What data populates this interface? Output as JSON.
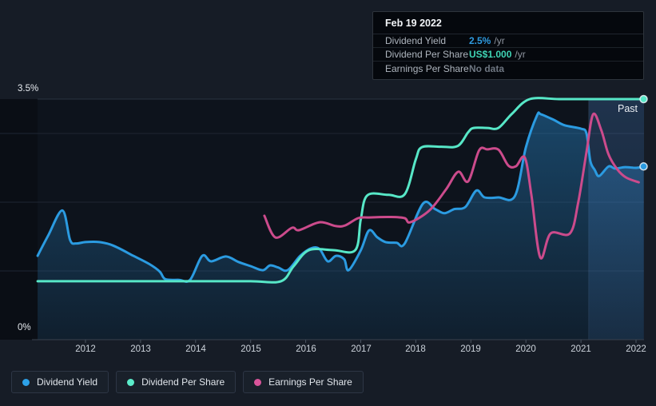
{
  "tooltip": {
    "date": "Feb 19 2022",
    "rows": [
      {
        "label": "Dividend Yield",
        "value": "2.5%",
        "suffix": "/yr",
        "value_color": "#2f9be0"
      },
      {
        "label": "Dividend Per Share",
        "value": "US$1.000",
        "suffix": "/yr",
        "value_color": "#3fd4b4"
      },
      {
        "label": "Earnings Per Share",
        "value": "No data",
        "suffix": "",
        "value_color": "#6e7681"
      }
    ]
  },
  "legend": {
    "items": [
      {
        "label": "Dividend Yield",
        "color": "#2da1e8"
      },
      {
        "label": "Dividend Per Share",
        "color": "#5becca"
      },
      {
        "label": "Earnings Per Share",
        "color": "#d9549a"
      }
    ]
  },
  "chart_data": {
    "type": "line",
    "past_label": "Past",
    "x_axis": {
      "ticks": [
        2012,
        2013,
        2014,
        2015,
        2016,
        2017,
        2018,
        2019,
        2020,
        2021,
        2022
      ],
      "range_years": [
        2011.13,
        2022.15
      ]
    },
    "y_axis": {
      "label_top": "3.5%",
      "label_bottom": "0%",
      "range_percent": [
        0,
        3.5
      ],
      "minor_gridlines_percent": [
        1,
        2,
        3
      ]
    },
    "highlight_band": {
      "x_start_year": 2021.14,
      "x_end_year": 2022.15
    },
    "series": [
      {
        "name": "Dividend Yield",
        "unit": "percent",
        "color": "#2b9be1",
        "area_fill": true,
        "end_dot": true,
        "points": [
          [
            2011.13,
            1.22
          ],
          [
            2011.32,
            1.51
          ],
          [
            2011.58,
            1.88
          ],
          [
            2011.72,
            1.45
          ],
          [
            2011.83,
            1.4
          ],
          [
            2012.0,
            1.42
          ],
          [
            2012.25,
            1.42
          ],
          [
            2012.5,
            1.37
          ],
          [
            2012.87,
            1.22
          ],
          [
            2013.16,
            1.1
          ],
          [
            2013.35,
            0.99
          ],
          [
            2013.45,
            0.88
          ],
          [
            2013.7,
            0.87
          ],
          [
            2013.9,
            0.87
          ],
          [
            2014.12,
            1.22
          ],
          [
            2014.28,
            1.14
          ],
          [
            2014.55,
            1.21
          ],
          [
            2014.78,
            1.13
          ],
          [
            2015.0,
            1.07
          ],
          [
            2015.22,
            1.01
          ],
          [
            2015.35,
            1.08
          ],
          [
            2015.5,
            1.05
          ],
          [
            2015.67,
            1.01
          ],
          [
            2015.9,
            1.22
          ],
          [
            2016.1,
            1.33
          ],
          [
            2016.25,
            1.32
          ],
          [
            2016.4,
            1.14
          ],
          [
            2016.55,
            1.22
          ],
          [
            2016.7,
            1.17
          ],
          [
            2016.78,
            1.01
          ],
          [
            2017.0,
            1.3
          ],
          [
            2017.15,
            1.59
          ],
          [
            2017.3,
            1.49
          ],
          [
            2017.45,
            1.42
          ],
          [
            2017.65,
            1.41
          ],
          [
            2017.8,
            1.4
          ],
          [
            2018.13,
            1.98
          ],
          [
            2018.35,
            1.9
          ],
          [
            2018.52,
            1.84
          ],
          [
            2018.7,
            1.9
          ],
          [
            2018.9,
            1.93
          ],
          [
            2019.1,
            2.17
          ],
          [
            2019.25,
            2.07
          ],
          [
            2019.5,
            2.07
          ],
          [
            2019.8,
            2.09
          ],
          [
            2020.0,
            2.8
          ],
          [
            2020.2,
            3.26
          ],
          [
            2020.27,
            3.28
          ],
          [
            2020.5,
            3.2
          ],
          [
            2020.7,
            3.12
          ],
          [
            2021.0,
            3.07
          ],
          [
            2021.1,
            3.0
          ],
          [
            2021.17,
            2.6
          ],
          [
            2021.25,
            2.47
          ],
          [
            2021.33,
            2.38
          ],
          [
            2021.5,
            2.52
          ],
          [
            2021.62,
            2.49
          ],
          [
            2021.8,
            2.51
          ],
          [
            2022.0,
            2.5
          ],
          [
            2022.14,
            2.52
          ]
        ]
      },
      {
        "name": "Dividend Per Share",
        "unit": "usd",
        "color": "#57e7c7",
        "area_fill": false,
        "end_dot": true,
        "points": [
          [
            2011.13,
            0.243
          ],
          [
            2012.5,
            0.243
          ],
          [
            2014.0,
            0.243
          ],
          [
            2015.0,
            0.243
          ],
          [
            2015.55,
            0.243
          ],
          [
            2015.78,
            0.305
          ],
          [
            2016.06,
            0.372
          ],
          [
            2016.5,
            0.372
          ],
          [
            2016.9,
            0.372
          ],
          [
            2017.0,
            0.5
          ],
          [
            2017.12,
            0.6
          ],
          [
            2017.5,
            0.602
          ],
          [
            2017.8,
            0.605
          ],
          [
            2018.0,
            0.75
          ],
          [
            2018.11,
            0.8
          ],
          [
            2018.45,
            0.802
          ],
          [
            2018.76,
            0.805
          ],
          [
            2018.95,
            0.862
          ],
          [
            2019.05,
            0.88
          ],
          [
            2019.3,
            0.88
          ],
          [
            2019.5,
            0.88
          ],
          [
            2019.75,
            0.94
          ],
          [
            2020.07,
            1.0
          ],
          [
            2020.6,
            1.0
          ],
          [
            2021.2,
            1.0
          ],
          [
            2021.8,
            1.0
          ],
          [
            2022.14,
            1.0
          ]
        ]
      },
      {
        "name": "Earnings Per Share",
        "unit": "normalized",
        "color": "#cc4b8c",
        "area_fill": false,
        "end_dot": false,
        "points": [
          [
            2015.25,
            0.515
          ],
          [
            2015.45,
            0.425
          ],
          [
            2015.75,
            0.465
          ],
          [
            2015.88,
            0.455
          ],
          [
            2016.25,
            0.488
          ],
          [
            2016.55,
            0.472
          ],
          [
            2016.72,
            0.475
          ],
          [
            2016.95,
            0.505
          ],
          [
            2017.15,
            0.508
          ],
          [
            2017.55,
            0.51
          ],
          [
            2017.8,
            0.505
          ],
          [
            2017.9,
            0.488
          ],
          [
            2018.25,
            0.538
          ],
          [
            2018.55,
            0.625
          ],
          [
            2018.77,
            0.698
          ],
          [
            2018.95,
            0.658
          ],
          [
            2019.15,
            0.787
          ],
          [
            2019.3,
            0.791
          ],
          [
            2019.5,
            0.79
          ],
          [
            2019.68,
            0.724
          ],
          [
            2019.82,
            0.721
          ],
          [
            2019.98,
            0.757
          ],
          [
            2020.1,
            0.6
          ],
          [
            2020.26,
            0.342
          ],
          [
            2020.45,
            0.442
          ],
          [
            2020.8,
            0.442
          ],
          [
            2020.95,
            0.571
          ],
          [
            2021.1,
            0.78
          ],
          [
            2021.22,
            0.937
          ],
          [
            2021.37,
            0.87
          ],
          [
            2021.5,
            0.77
          ],
          [
            2021.66,
            0.708
          ],
          [
            2021.82,
            0.674
          ],
          [
            2022.05,
            0.654
          ]
        ]
      }
    ]
  }
}
